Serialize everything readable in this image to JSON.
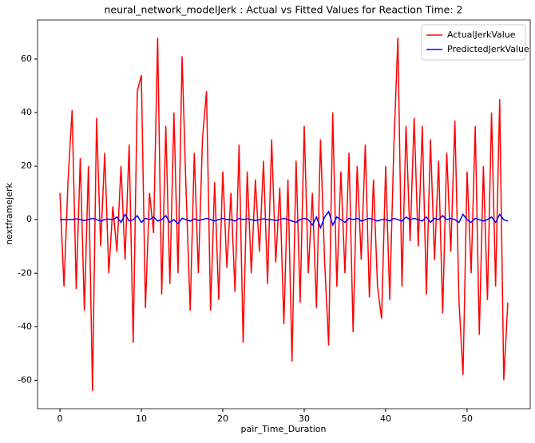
{
  "chart_data": {
    "type": "line",
    "title": "neural_network_modelJerk : Actual vs Fitted Values for Reaction Time: 2",
    "x_label": "pair_Time_Duration",
    "y_label": "nextframejerk",
    "x": [
      0,
      0.5,
      1,
      1.5,
      2,
      2.5,
      3,
      3.5,
      4,
      4.5,
      5,
      5.5,
      6,
      6.5,
      7,
      7.5,
      8,
      8.5,
      9,
      9.5,
      10,
      10.5,
      11,
      11.5,
      12,
      12.5,
      13,
      13.5,
      14,
      14.5,
      15,
      15.5,
      16,
      16.5,
      17,
      17.5,
      18,
      18.5,
      19,
      19.5,
      20,
      20.5,
      21,
      21.5,
      22,
      22.5,
      23,
      23.5,
      24,
      24.5,
      25,
      25.5,
      26,
      26.5,
      27,
      27.5,
      28,
      28.5,
      29,
      29.5,
      30,
      30.5,
      31,
      31.5,
      32,
      32.5,
      33,
      33.5,
      34,
      34.5,
      35,
      35.5,
      36,
      36.5,
      37,
      37.5,
      38,
      38.5,
      39,
      39.5,
      40,
      40.5,
      41,
      41.5,
      42,
      42.5,
      43,
      43.5,
      44,
      44.5,
      45,
      45.5,
      46,
      46.5,
      47,
      47.5,
      48,
      48.5,
      49,
      49.5,
      50,
      50.5,
      51,
      51.5,
      52,
      52.5,
      53,
      53.5,
      54,
      54.5,
      55
    ],
    "series": [
      {
        "name": "ActualJerkValue",
        "color": "#ff0000",
        "values": [
          10,
          -25,
          15,
          41,
          -26,
          23,
          -34,
          20,
          -64,
          38,
          -10,
          25,
          -20,
          5,
          -12,
          20,
          -15,
          28,
          -46,
          48,
          54,
          -33,
          10,
          -5,
          68,
          -28,
          35,
          -24,
          40,
          -20,
          61,
          10,
          -34,
          25,
          -20,
          30,
          48,
          -34,
          14,
          -30,
          18,
          -18,
          10,
          -27,
          28,
          -46,
          18,
          -20,
          15,
          -12,
          22,
          -24,
          30,
          -16,
          12,
          -39,
          15,
          -53,
          22,
          -31,
          35,
          -20,
          10,
          -33,
          30,
          -15,
          -47,
          40,
          -25,
          18,
          -20,
          25,
          -42,
          20,
          -15,
          28,
          -29,
          15,
          -25,
          -37,
          20,
          -30,
          27,
          68,
          -25,
          35,
          -8,
          38,
          -10,
          35,
          -28,
          30,
          -15,
          22,
          -35,
          25,
          -12,
          37,
          -30,
          -58,
          18,
          -20,
          35,
          -43,
          20,
          -30,
          40,
          -25,
          45,
          -60,
          -31
        ]
      },
      {
        "name": "PredictedJerkValue",
        "color": "#0000ff",
        "values": [
          0,
          0,
          0,
          0,
          0.3,
          0,
          -0.3,
          0,
          0.5,
          0,
          -0.5,
          0,
          0.2,
          0,
          1,
          -1,
          2,
          -0.5,
          0,
          1.5,
          -1,
          0.5,
          0,
          1,
          -0.5,
          0,
          1.5,
          -1,
          0,
          -1.5,
          0.5,
          0,
          -0.5,
          0.3,
          -0.3,
          0,
          0.5,
          0,
          -0.5,
          0,
          0.5,
          0,
          0,
          -0.5,
          0.5,
          0,
          0.3,
          0,
          -0.3,
          0,
          0.3,
          0,
          0,
          -0.3,
          0,
          0.5,
          0,
          -0.5,
          -1,
          0,
          0.5,
          0,
          -2,
          1,
          -3,
          1,
          3,
          -2,
          1,
          0,
          -1,
          0.5,
          0,
          0.5,
          -0.5,
          0,
          0.5,
          0,
          -0.5,
          0,
          0,
          -0.5,
          0.5,
          0,
          -0.5,
          1,
          0,
          0.5,
          0,
          -0.5,
          1,
          -1,
          0.5,
          0,
          1.5,
          0,
          0.5,
          0,
          -1,
          2,
          0,
          -1,
          0.5,
          0,
          -0.5,
          0,
          1,
          -1,
          2,
          0,
          -0.5
        ]
      }
    ],
    "xlim": [
      -2.75,
      57.75
    ],
    "ylim": [
      -70.6,
      74.6
    ],
    "xticks": [
      0,
      10,
      20,
      30,
      40,
      50
    ],
    "yticks": [
      -60,
      -40,
      -20,
      0,
      20,
      40,
      60
    ],
    "legend": "upper right"
  }
}
